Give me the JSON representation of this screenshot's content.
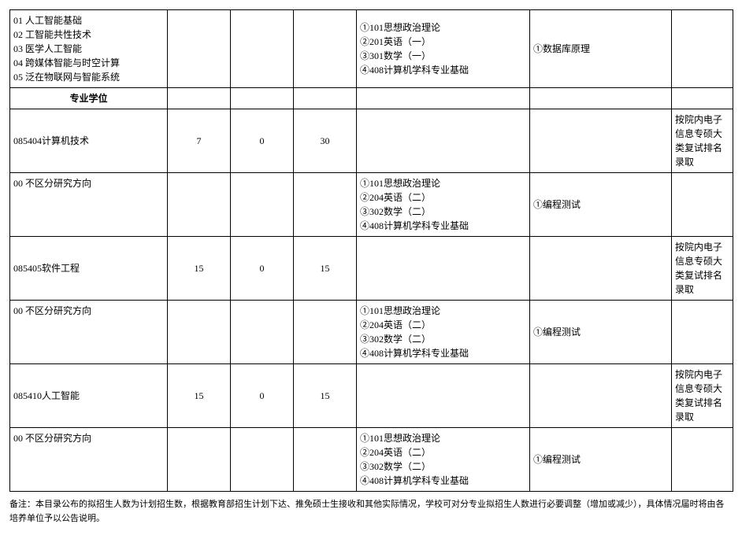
{
  "table": {
    "row1": {
      "directions": "01 人工智能基础\n02 工智能共性技术\n03 医学人工智能\n04 跨媒体智能与时空计算\n05 泛在物联网与智能系统",
      "c2": "",
      "c3": "",
      "c4": "",
      "exams": "①101思想政治理论\n②201英语（一）\n③301数学（一）\n④408计算机学科专业基础",
      "retest": "①数据库原理",
      "note": ""
    },
    "section_header": "专业学位",
    "row_jsjjs": {
      "name": "085404计算机技术",
      "c2": "7",
      "c3": "0",
      "c4": "30",
      "c5": "",
      "c6": "",
      "note": "按院内电子信息专硕大类复试排名录取"
    },
    "row_jsjjs_dir": {
      "name": "00 不区分研究方向",
      "c2": "",
      "c3": "",
      "c4": "",
      "exams": "①101思想政治理论\n②204英语（二）\n③302数学（二）\n④408计算机学科专业基础",
      "retest": "①编程测试",
      "note": ""
    },
    "row_rjgc": {
      "name": "085405软件工程",
      "c2": "15",
      "c3": "0",
      "c4": "15",
      "c5": "",
      "c6": "",
      "note": "按院内电子信息专硕大类复试排名录取"
    },
    "row_rjgc_dir": {
      "name": "00 不区分研究方向",
      "c2": "",
      "c3": "",
      "c4": "",
      "exams": "①101思想政治理论\n②204英语（二）\n③302数学（二）\n④408计算机学科专业基础",
      "retest": "①编程测试",
      "note": ""
    },
    "row_rgzn": {
      "name": "085410人工智能",
      "c2": "15",
      "c3": "0",
      "c4": "15",
      "c5": "",
      "c6": "",
      "note": "按院内电子信息专硕大类复试排名录取"
    },
    "row_rgzn_dir": {
      "name": "00 不区分研究方向",
      "c2": "",
      "c3": "",
      "c4": "",
      "exams": "①101思想政治理论\n②204英语（二）\n③302数学（二）\n④408计算机学科专业基础",
      "retest": "①编程测试",
      "note": ""
    }
  },
  "footnote": "备注：本目录公布的拟招生人数为计划招生数，根据教育部招生计划下达、推免硕士生接收和其他实际情况，学校可对分专业拟招生人数进行必要调整（增加或减少），具体情况届时将由各培养单位予以公告说明。"
}
